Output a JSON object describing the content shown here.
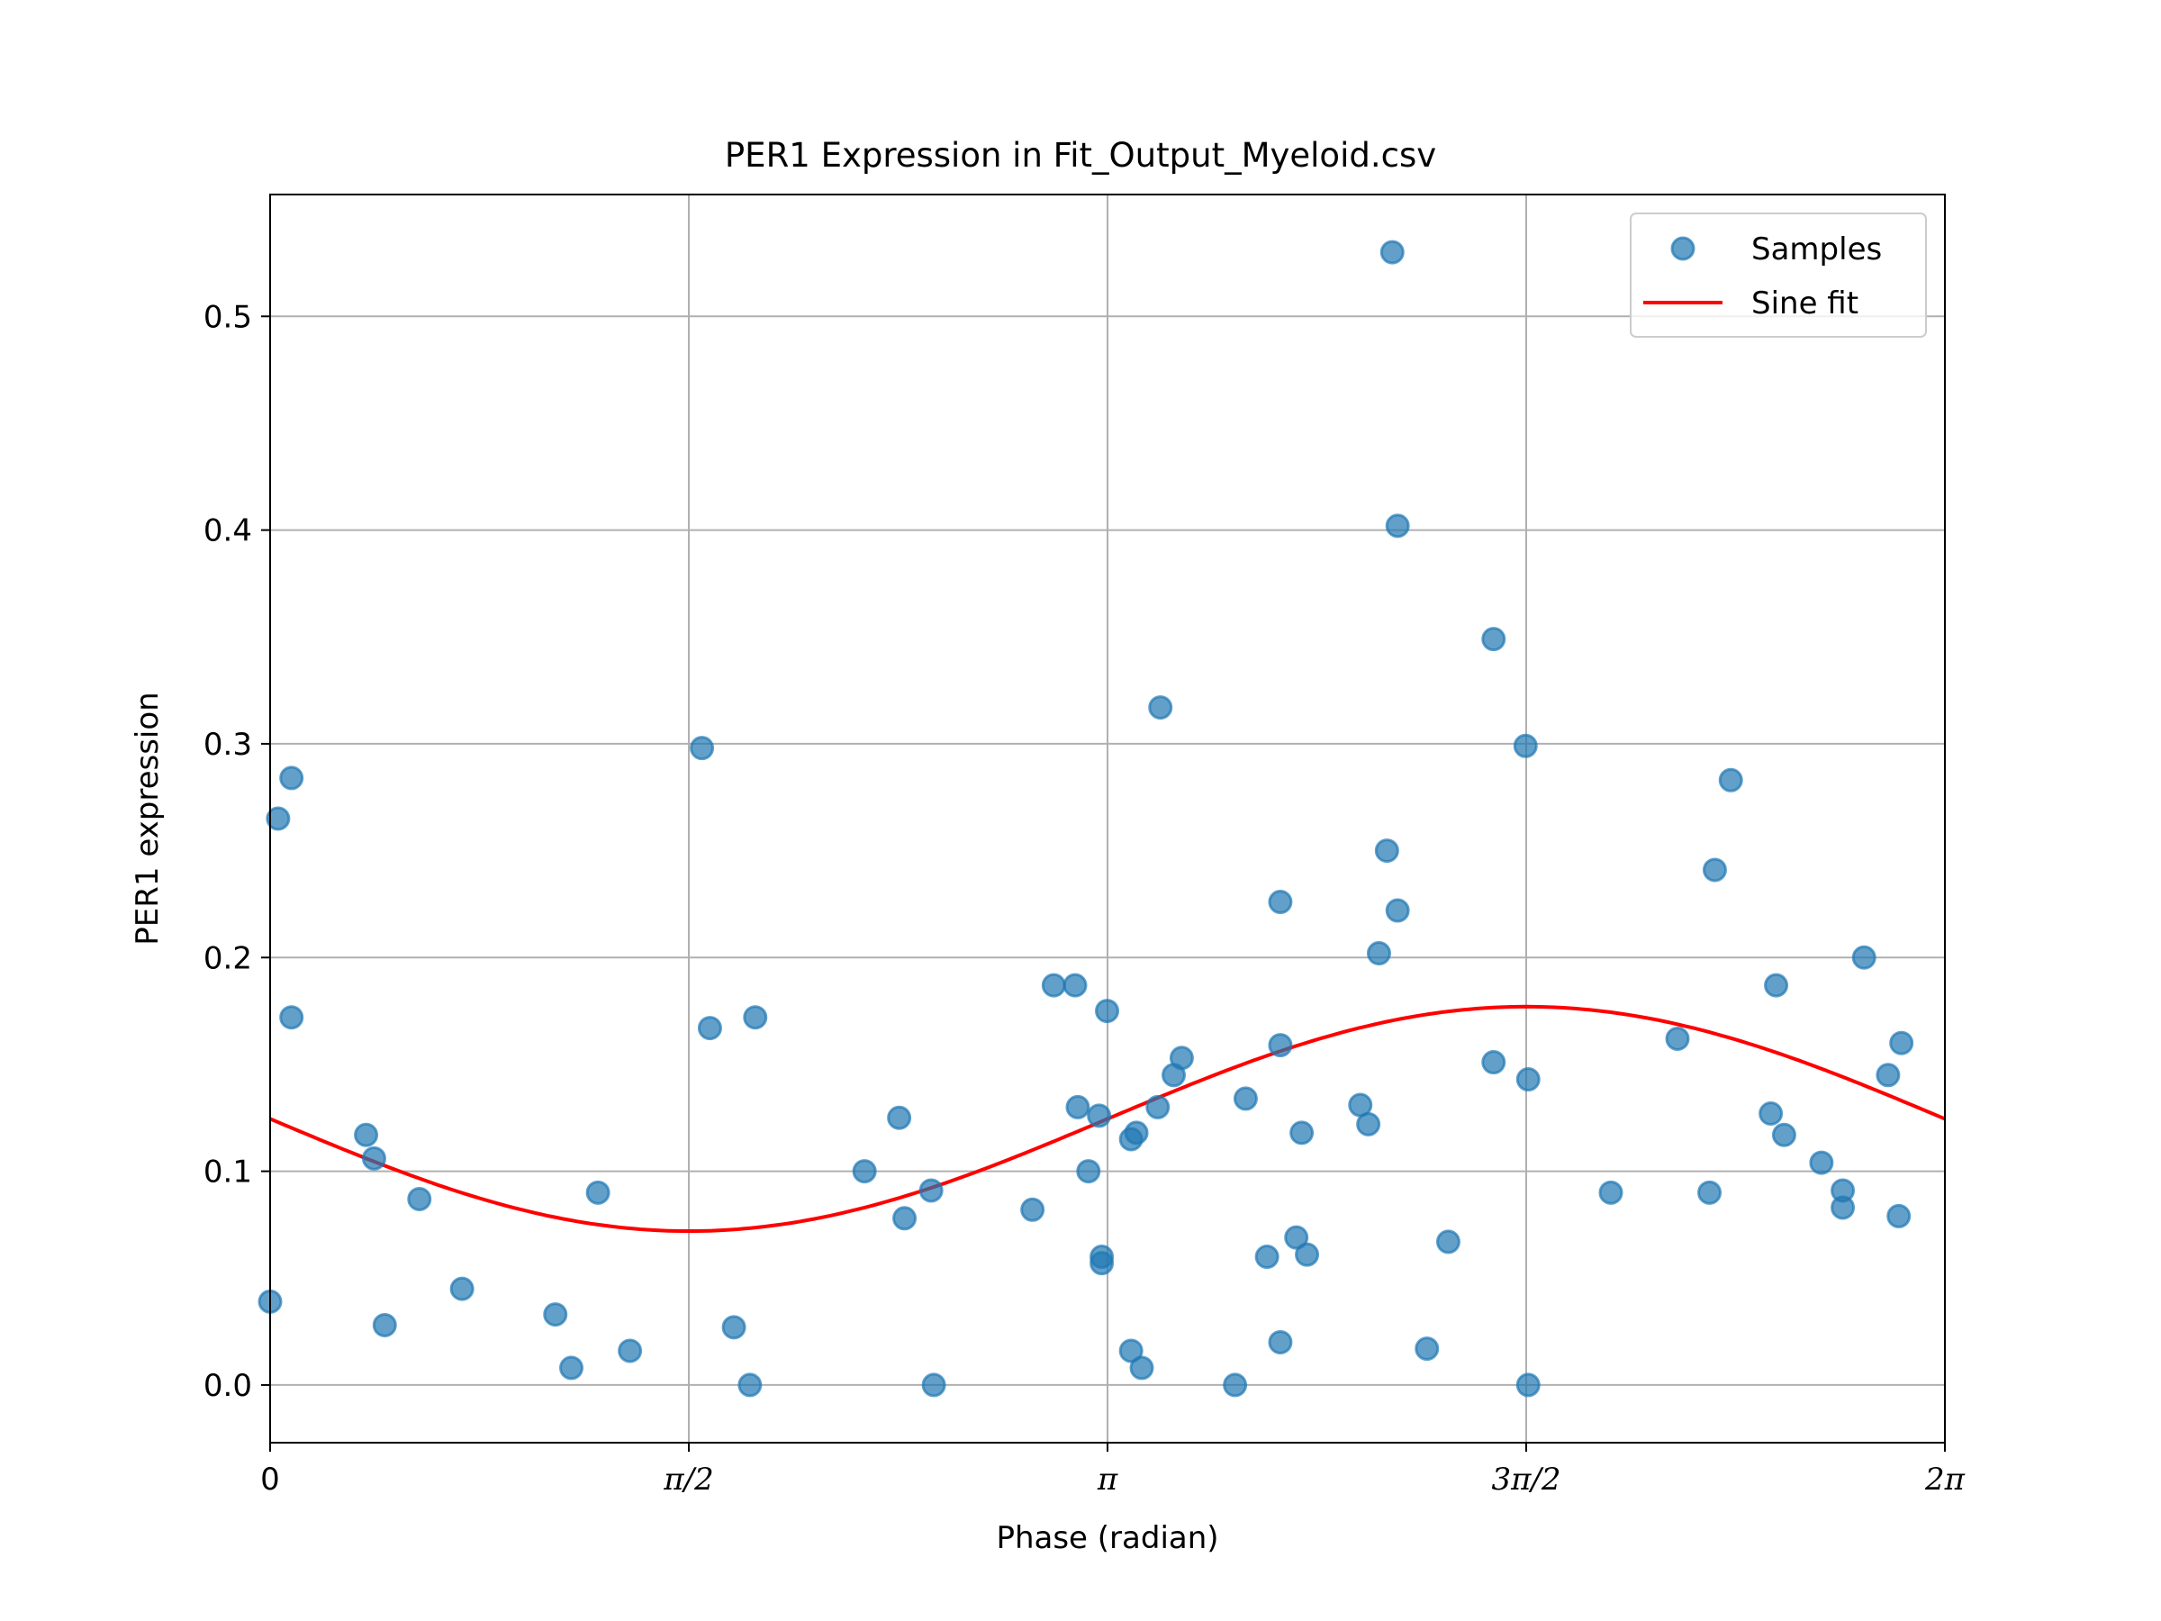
{
  "chart_data": {
    "type": "scatter",
    "title": "PER1 Expression in Fit_Output_Myeloid.csv",
    "xlabel": "Phase (radian)",
    "ylabel": "PER1 expression",
    "xlim": [
      0,
      6.2832
    ],
    "ylim": [
      -0.027,
      0.557
    ],
    "grid": true,
    "legend_position": "top-right",
    "x_ticks": [
      {
        "value": 0,
        "label": "0"
      },
      {
        "value": 1.5708,
        "label": "π/2"
      },
      {
        "value": 3.1416,
        "label": "π"
      },
      {
        "value": 4.7124,
        "label": "3π/2"
      },
      {
        "value": 6.2832,
        "label": "2π"
      }
    ],
    "y_ticks": [
      {
        "value": 0.0,
        "label": "0.0"
      },
      {
        "value": 0.1,
        "label": "0.1"
      },
      {
        "value": 0.2,
        "label": "0.2"
      },
      {
        "value": 0.3,
        "label": "0.3"
      },
      {
        "value": 0.4,
        "label": "0.4"
      },
      {
        "value": 0.5,
        "label": "0.5"
      }
    ],
    "colors": {
      "samples": "#1f77b4",
      "fit": "#ff0000",
      "grid": "#b0b0b0"
    },
    "series": [
      {
        "name": "Samples",
        "kind": "scatter",
        "points": [
          [
            0.0,
            0.039
          ],
          [
            0.03,
            0.265
          ],
          [
            0.08,
            0.284
          ],
          [
            0.08,
            0.172
          ],
          [
            0.36,
            0.117
          ],
          [
            0.39,
            0.106
          ],
          [
            0.43,
            0.028
          ],
          [
            0.56,
            0.087
          ],
          [
            0.72,
            0.045
          ],
          [
            1.07,
            0.033
          ],
          [
            1.13,
            0.008
          ],
          [
            1.23,
            0.09
          ],
          [
            1.35,
            0.016
          ],
          [
            1.62,
            0.298
          ],
          [
            1.65,
            0.167
          ],
          [
            1.74,
            0.027
          ],
          [
            1.8,
            0.0
          ],
          [
            1.82,
            0.172
          ],
          [
            2.23,
            0.1
          ],
          [
            2.36,
            0.125
          ],
          [
            2.38,
            0.078
          ],
          [
            2.48,
            0.091
          ],
          [
            2.49,
            0.0
          ],
          [
            2.86,
            0.082
          ],
          [
            2.94,
            0.187
          ],
          [
            3.02,
            0.187
          ],
          [
            3.03,
            0.13
          ],
          [
            3.07,
            0.1
          ],
          [
            3.11,
            0.126
          ],
          [
            3.12,
            0.06
          ],
          [
            3.12,
            0.057
          ],
          [
            3.14,
            0.175
          ],
          [
            3.23,
            0.115
          ],
          [
            3.23,
            0.016
          ],
          [
            3.25,
            0.118
          ],
          [
            3.27,
            0.008
          ],
          [
            3.33,
            0.13
          ],
          [
            3.34,
            0.317
          ],
          [
            3.39,
            0.145
          ],
          [
            3.42,
            0.153
          ],
          [
            3.62,
            0.0
          ],
          [
            3.66,
            0.134
          ],
          [
            3.74,
            0.06
          ],
          [
            3.79,
            0.226
          ],
          [
            3.79,
            0.159
          ],
          [
            3.79,
            0.02
          ],
          [
            3.85,
            0.069
          ],
          [
            3.87,
            0.118
          ],
          [
            3.89,
            0.061
          ],
          [
            4.09,
            0.131
          ],
          [
            4.12,
            0.122
          ],
          [
            4.16,
            0.202
          ],
          [
            4.19,
            0.25
          ],
          [
            4.21,
            0.53
          ],
          [
            4.23,
            0.402
          ],
          [
            4.23,
            0.222
          ],
          [
            4.34,
            0.017
          ],
          [
            4.42,
            0.067
          ],
          [
            4.59,
            0.151
          ],
          [
            4.59,
            0.349
          ],
          [
            4.71,
            0.299
          ],
          [
            4.72,
            0.143
          ],
          [
            4.72,
            0.0
          ],
          [
            5.03,
            0.09
          ],
          [
            5.28,
            0.162
          ],
          [
            5.4,
            0.09
          ],
          [
            5.42,
            0.241
          ],
          [
            5.48,
            0.283
          ],
          [
            5.63,
            0.127
          ],
          [
            5.65,
            0.187
          ],
          [
            5.68,
            0.117
          ],
          [
            5.82,
            0.104
          ],
          [
            5.9,
            0.091
          ],
          [
            5.9,
            0.083
          ],
          [
            5.98,
            0.2
          ],
          [
            6.07,
            0.145
          ],
          [
            6.11,
            0.079
          ],
          [
            6.12,
            0.16
          ]
        ]
      },
      {
        "name": "Sine fit",
        "kind": "line",
        "model": {
          "offset": 0.1245,
          "amplitude": 0.0525,
          "peak_phase": 4.7124
        }
      }
    ]
  }
}
